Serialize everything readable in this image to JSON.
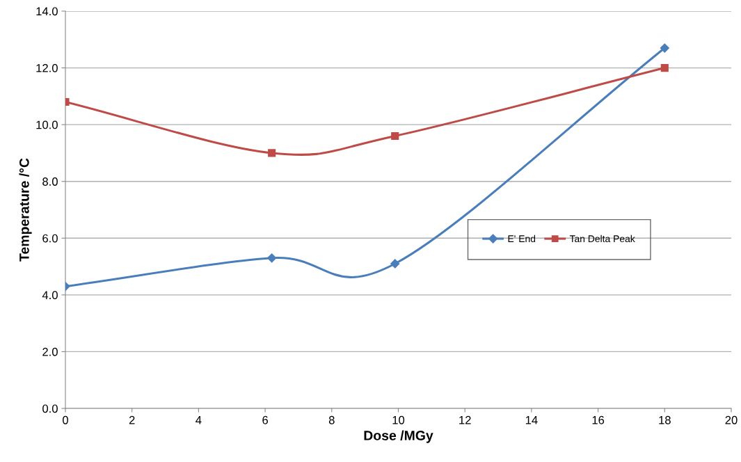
{
  "chart_data": {
    "type": "line",
    "xlabel": "Dose /MGy",
    "ylabel": "Temperature /°C",
    "x": [
      0,
      6.2,
      9.9,
      18
    ],
    "series": [
      {
        "name": "E' End",
        "color": "#4a7ebb",
        "marker": "diamond",
        "values": [
          4.3,
          5.3,
          5.1,
          12.7
        ]
      },
      {
        "name": "Tan Delta Peak",
        "color": "#be4b48",
        "marker": "square",
        "values": [
          10.8,
          9.0,
          9.6,
          12.0
        ]
      }
    ],
    "xlim": [
      0,
      20
    ],
    "xticks": [
      0,
      2,
      4,
      6,
      8,
      10,
      12,
      14,
      16,
      18,
      20
    ],
    "ylim": [
      0,
      14
    ],
    "yticks": [
      {
        "value": 0,
        "label": "0.0"
      },
      {
        "value": 2,
        "label": "2.0"
      },
      {
        "value": 4,
        "label": "4.0"
      },
      {
        "value": 6,
        "label": "6.0"
      },
      {
        "value": 8,
        "label": "8.0"
      },
      {
        "value": 10,
        "label": "10.0"
      },
      {
        "value": 12,
        "label": "12.0"
      },
      {
        "value": 14,
        "label": "14.0"
      }
    ],
    "grid": "y",
    "legend": "right",
    "line_style": "solid"
  }
}
